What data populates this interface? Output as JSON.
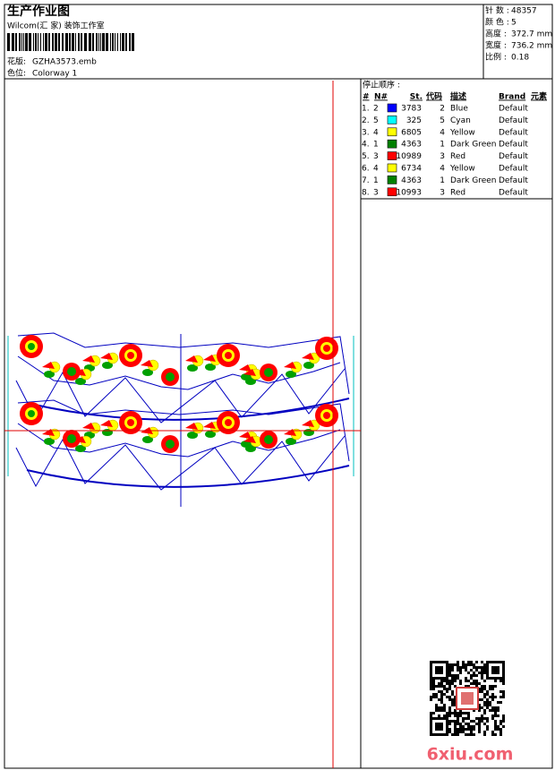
{
  "header": {
    "title": "生产作业图",
    "subtitle": "Wilcom(汇 家) 装饰工作室",
    "design_label": "花版:",
    "design": "GZHA3573.emb",
    "colorway_label": "色位:",
    "colorway": "Colorway 1"
  },
  "stats": [
    {
      "label": "针 数 :",
      "value": "48357"
    },
    {
      "label": "颜 色 :",
      "value": "5"
    },
    {
      "label": "高度 :",
      "value": "372.7 mm"
    },
    {
      "label": "宽度 :",
      "value": "736.2 mm"
    },
    {
      "label": "比例 :",
      "value": "0.18"
    }
  ],
  "stop_sequence": {
    "title": "停止顺序 :",
    "columns": [
      "#",
      "N#",
      "St.",
      "代码",
      "描述",
      "Brand",
      "元素"
    ],
    "rows": [
      {
        "index": "1.",
        "needle": "2",
        "color": "#0000ff",
        "stitches": "3783",
        "code": "2",
        "description": "Blue",
        "brand": "Default"
      },
      {
        "index": "2.",
        "needle": "5",
        "color": "#00ffff",
        "stitches": "325",
        "code": "5",
        "description": "Cyan",
        "brand": "Default"
      },
      {
        "index": "3.",
        "needle": "4",
        "color": "#ffff00",
        "stitches": "6805",
        "code": "4",
        "description": "Yellow",
        "brand": "Default"
      },
      {
        "index": "4.",
        "needle": "1",
        "color": "#008000",
        "stitches": "4363",
        "code": "1",
        "description": "Dark Green",
        "brand": "Default"
      },
      {
        "index": "5.",
        "needle": "3",
        "color": "#ff0000",
        "stitches": "10989",
        "code": "3",
        "description": "Red",
        "brand": "Default"
      },
      {
        "index": "6.",
        "needle": "4",
        "color": "#ffff00",
        "stitches": "6734",
        "code": "4",
        "description": "Yellow",
        "brand": "Default"
      },
      {
        "index": "7.",
        "needle": "1",
        "color": "#008000",
        "stitches": "4363",
        "code": "1",
        "description": "Dark Green",
        "brand": "Default"
      },
      {
        "index": "8.",
        "needle": "3",
        "color": "#ff0000",
        "stitches": "10993",
        "code": "3",
        "description": "Red",
        "brand": "Default"
      }
    ]
  },
  "watermark": "6xiu.com"
}
